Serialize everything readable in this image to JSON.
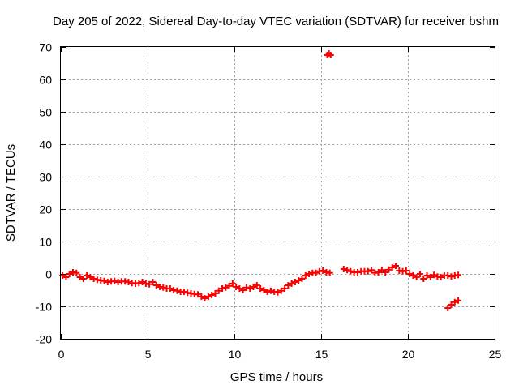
{
  "chart_data": {
    "type": "scatter",
    "title": "Day 205 of 2022, Sidereal Day-to-day VTEC variation (SDTVAR) for receiver bshm",
    "xlabel": "GPS time / hours",
    "ylabel": "SDTVAR / TECUs",
    "xlim": [
      0,
      25
    ],
    "ylim": [
      -20,
      70
    ],
    "xticks": [
      0,
      5,
      10,
      15,
      20,
      25
    ],
    "yticks": [
      -20,
      -10,
      0,
      10,
      20,
      30,
      40,
      50,
      60,
      70
    ],
    "grid": true,
    "marker": "+",
    "color": "#ff0000",
    "series": [
      {
        "name": "SDTVAR",
        "x": [
          0.1,
          0.3,
          0.5,
          0.7,
          0.9,
          1.1,
          1.3,
          1.5,
          1.7,
          1.9,
          2.1,
          2.3,
          2.5,
          2.7,
          2.9,
          3.1,
          3.3,
          3.5,
          3.7,
          3.9,
          4.1,
          4.3,
          4.5,
          4.7,
          4.9,
          5.1,
          5.3,
          5.5,
          5.7,
          5.9,
          6.1,
          6.3,
          6.5,
          6.7,
          6.9,
          7.1,
          7.3,
          7.5,
          7.7,
          7.9,
          8.1,
          8.3,
          8.5,
          8.7,
          8.9,
          9.1,
          9.3,
          9.5,
          9.7,
          9.9,
          10.1,
          10.3,
          10.5,
          10.7,
          10.9,
          11.1,
          11.3,
          11.5,
          11.7,
          11.9,
          12.1,
          12.3,
          12.5,
          12.7,
          12.9,
          13.1,
          13.3,
          13.5,
          13.7,
          13.9,
          14.1,
          14.3,
          14.5,
          14.7,
          14.9,
          15.1,
          15.3,
          15.5,
          16.3,
          16.5,
          16.7,
          16.9,
          17.1,
          17.3,
          17.5,
          17.7,
          17.9,
          18.1,
          18.3,
          18.5,
          18.7,
          18.9,
          19.1,
          19.3,
          19.5,
          19.7,
          19.9,
          20.1,
          20.3,
          20.5,
          20.7,
          20.9,
          21.1,
          21.3,
          21.5,
          21.7,
          21.9,
          22.1,
          22.3,
          22.5,
          22.7,
          22.9,
          15.35,
          15.45,
          15.55,
          22.3,
          22.5,
          22.7,
          22.9
        ],
        "y": [
          -0.5,
          -1,
          0,
          0.5,
          0.3,
          -1,
          -1.5,
          -0.5,
          -1,
          -1.5,
          -1.8,
          -2,
          -2.2,
          -2.5,
          -2.3,
          -2.2,
          -2.5,
          -2.3,
          -2.3,
          -2.5,
          -2.8,
          -3,
          -2.8,
          -2.5,
          -3,
          -3.2,
          -2.5,
          -3.5,
          -4,
          -4.2,
          -4.5,
          -4.5,
          -5,
          -5.2,
          -5.5,
          -5.5,
          -5.8,
          -6,
          -6.2,
          -6.3,
          -7,
          -7.5,
          -7,
          -6.5,
          -6,
          -5.2,
          -4.5,
          -4.2,
          -3.7,
          -3,
          -4,
          -4.5,
          -5,
          -4.2,
          -4.5,
          -4,
          -3.5,
          -4.5,
          -5,
          -5.5,
          -5.2,
          -5.5,
          -5.7,
          -5.2,
          -4.5,
          -3.5,
          -3,
          -2.5,
          -2,
          -1.5,
          -0.5,
          0,
          0.3,
          0.3,
          0.8,
          1,
          0.5,
          0.3,
          1.5,
          1.2,
          0.8,
          0.5,
          0.5,
          0.8,
          0.8,
          0.8,
          1.2,
          0.3,
          0.5,
          1.2,
          0.5,
          1.3,
          2,
          2.5,
          1,
          0.8,
          1,
          0,
          -0.5,
          -1,
          0,
          -1.5,
          -0.5,
          -1,
          -0.3,
          -0.8,
          -1,
          -0.5,
          -0.5,
          -0.8,
          -0.5,
          -0.3,
          67.5,
          68,
          67.5,
          -10.5,
          -9.5,
          -8.7,
          -8.2
        ]
      }
    ]
  }
}
